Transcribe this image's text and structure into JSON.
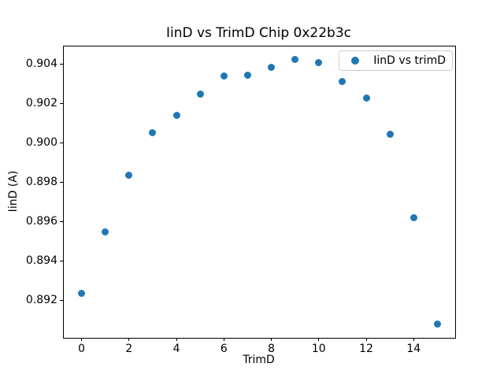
{
  "figure": {
    "title": "IinD vs TrimD Chip 0x22b3c",
    "xlabel": "TrimD",
    "ylabel": "IinD (A)",
    "legend": {
      "label": "IinD vs trimD"
    },
    "colors": {
      "marker": "#1f77b4",
      "spine": "#000000",
      "legend_border": "#cccccc",
      "background": "#ffffff"
    }
  },
  "chart_data": {
    "type": "scatter",
    "title": "IinD vs TrimD Chip 0x22b3c",
    "xlabel": "TrimD",
    "ylabel": "IinD (A)",
    "legend": [
      "IinD vs trimD"
    ],
    "legend_position": "upper right",
    "grid": false,
    "marker_color": "#1f77b4",
    "marker_size_px": 9,
    "x": [
      0,
      1,
      2,
      3,
      4,
      5,
      6,
      7,
      8,
      9,
      10,
      11,
      12,
      13,
      14,
      15
    ],
    "y": [
      0.89238,
      0.89548,
      0.89835,
      0.90052,
      0.9014,
      0.90247,
      0.9034,
      0.90345,
      0.90383,
      0.90423,
      0.90407,
      0.90311,
      0.90228,
      0.90043,
      0.89621,
      0.8908
    ],
    "xlim": [
      -0.75,
      15.75
    ],
    "ylim": [
      0.8901,
      0.9049
    ],
    "xticks": {
      "values": [
        0,
        2,
        4,
        6,
        8,
        10,
        12,
        14
      ],
      "labels": [
        "0",
        "2",
        "4",
        "6",
        "8",
        "10",
        "12",
        "14"
      ]
    },
    "yticks": {
      "values": [
        0.892,
        0.894,
        0.896,
        0.898,
        0.9,
        0.902,
        0.904
      ],
      "labels": [
        "0.892",
        "0.894",
        "0.896",
        "0.898",
        "0.900",
        "0.902",
        "0.904"
      ]
    }
  }
}
